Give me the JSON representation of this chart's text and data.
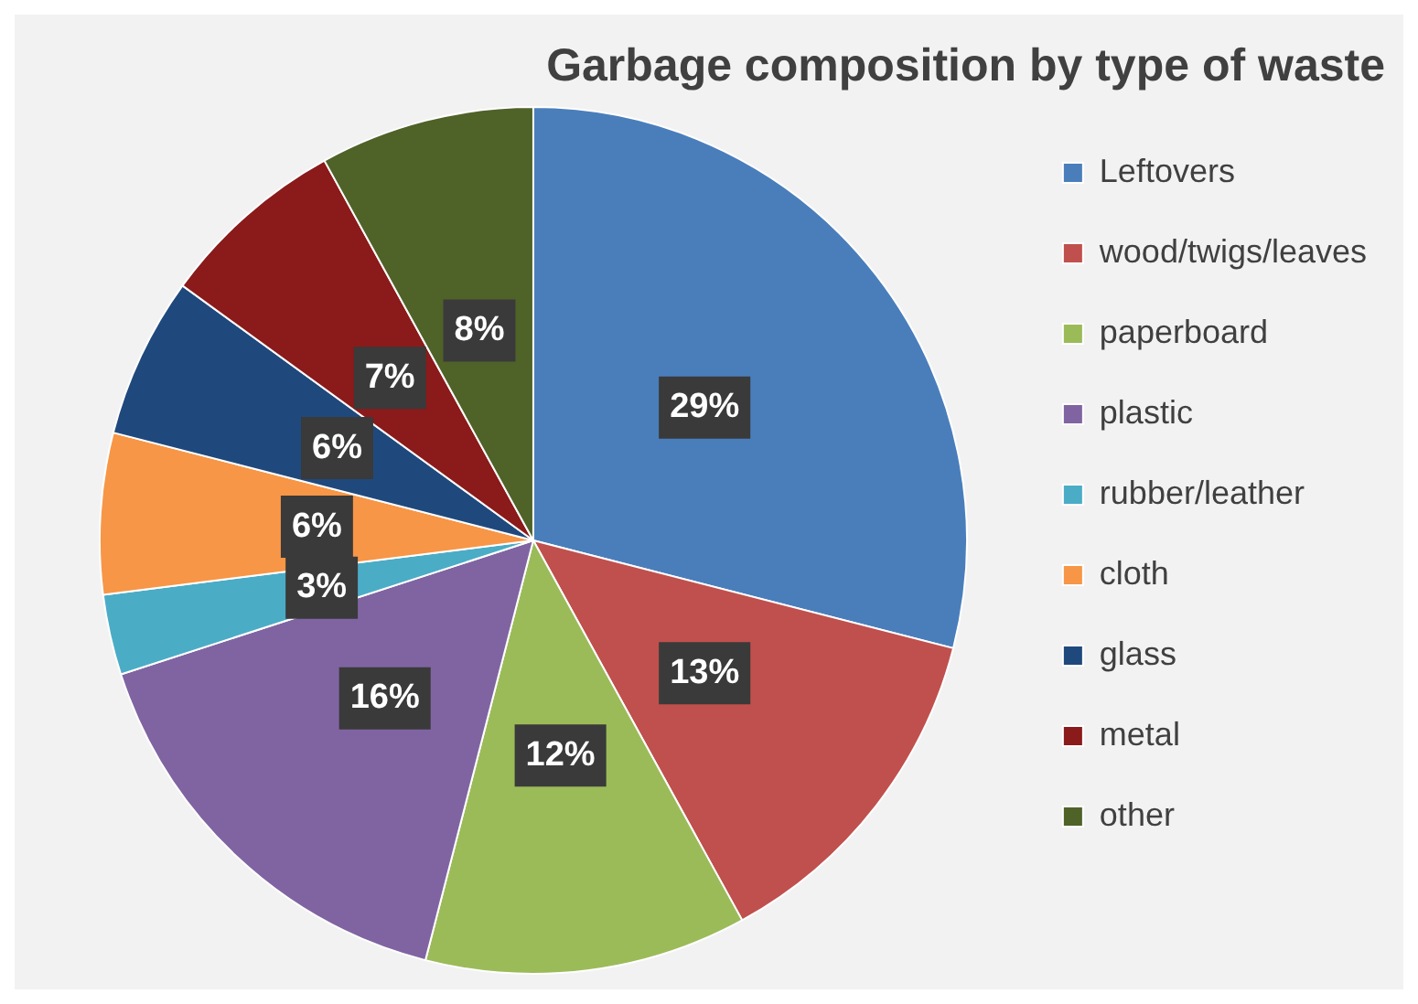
{
  "chart_data": {
    "type": "pie",
    "title": "Garbage composition by type of waste",
    "categories": [
      "Leftovers",
      "wood/twigs/leaves",
      "paperboard",
      "plastic",
      "rubber/leather",
      "cloth",
      "glass",
      "metal",
      "other"
    ],
    "values": [
      29,
      13,
      12,
      16,
      3,
      6,
      6,
      7,
      8
    ],
    "colors": [
      "#4a7ebb",
      "#c0504d",
      "#9bbb59",
      "#8064a2",
      "#4bacc6",
      "#f79646",
      "#1f497d",
      "#8b1a1a",
      "#4f6228"
    ],
    "value_labels": [
      "29%",
      "13%",
      "12%",
      "16%",
      "3%",
      "6%",
      "6%",
      "7%",
      "8%"
    ],
    "legend": "right"
  }
}
